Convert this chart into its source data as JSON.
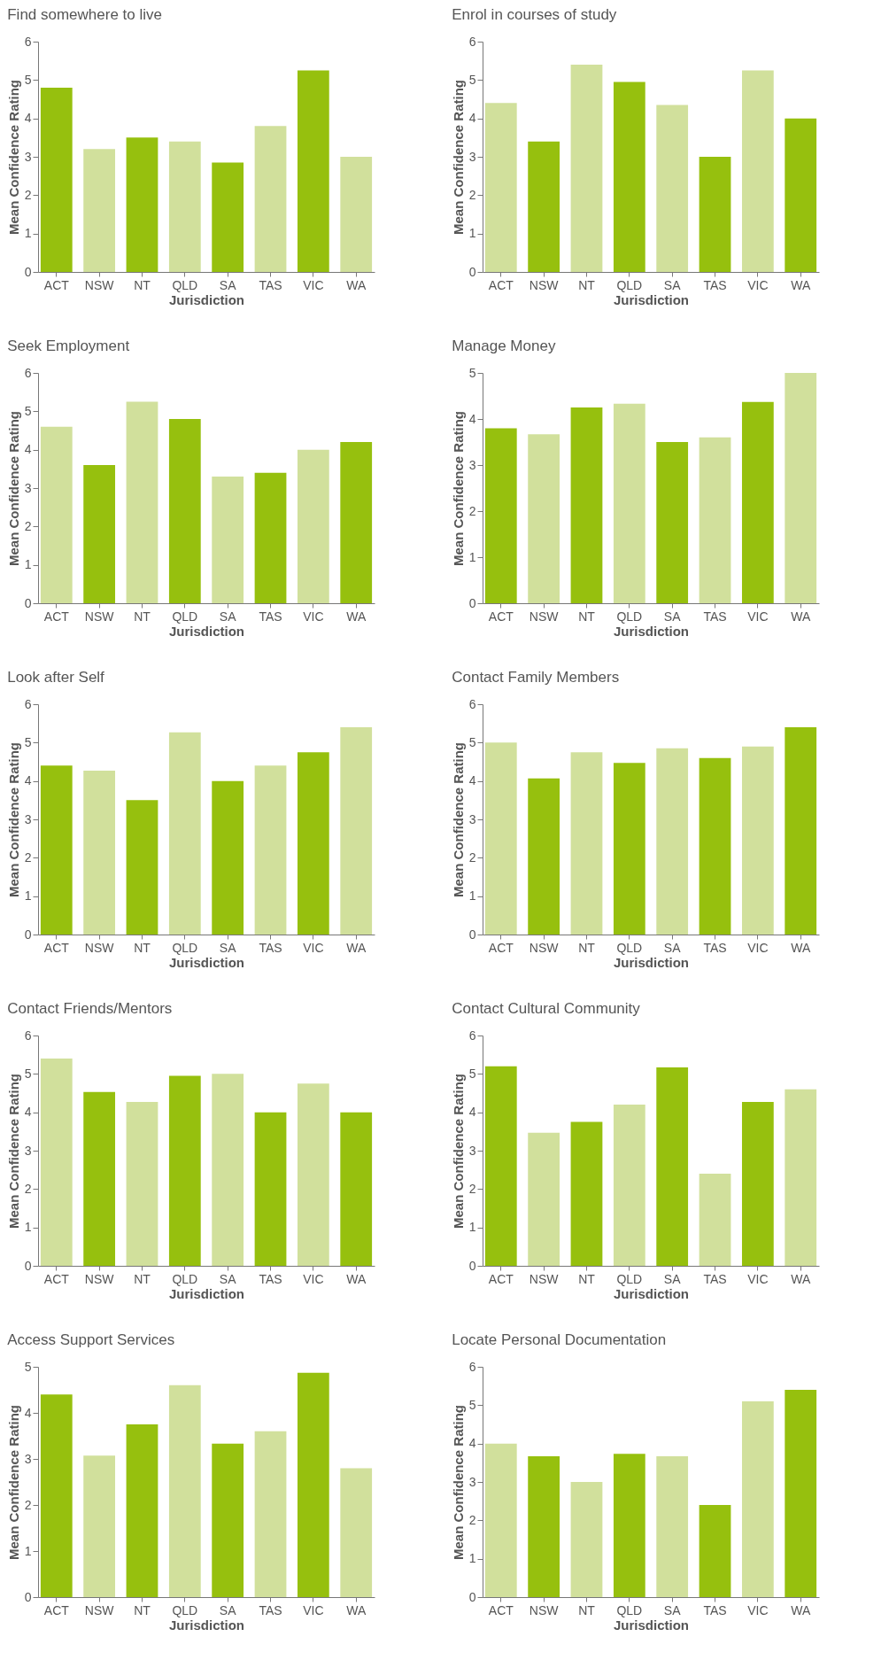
{
  "chart_data": [
    {
      "type": "bar",
      "title": "Find somewhere to live",
      "xlabel": "Jurisdiction",
      "ylabel": "Mean Confidence Rating",
      "categories": [
        "ACT",
        "NSW",
        "NT",
        "QLD",
        "SA",
        "TAS",
        "VIC",
        "WA"
      ],
      "values": [
        4.8,
        3.2,
        3.5,
        3.4,
        2.85,
        3.8,
        5.25,
        3.0
      ],
      "colors": [
        "#96c00e",
        "#d1e09c",
        "#96c00e",
        "#d1e09c",
        "#96c00e",
        "#d1e09c",
        "#96c00e",
        "#d1e09c"
      ],
      "ylim": [
        0,
        6
      ],
      "yticks": [
        0,
        1,
        2,
        3,
        4,
        5,
        6
      ]
    },
    {
      "type": "bar",
      "title": "Enrol in courses of study",
      "xlabel": "Jurisdiction",
      "ylabel": "Mean Confidence Rating",
      "categories": [
        "ACT",
        "NSW",
        "NT",
        "QLD",
        "SA",
        "TAS",
        "VIC",
        "WA"
      ],
      "values": [
        4.4,
        3.4,
        5.4,
        4.95,
        4.35,
        3.0,
        5.25,
        4.0
      ],
      "colors": [
        "#d1e09c",
        "#96c00e",
        "#d1e09c",
        "#96c00e",
        "#d1e09c",
        "#96c00e",
        "#d1e09c",
        "#96c00e"
      ],
      "ylim": [
        0,
        6
      ],
      "yticks": [
        0,
        1,
        2,
        3,
        4,
        5,
        6
      ]
    },
    {
      "type": "bar",
      "title": "Seek Employment",
      "xlabel": "Jurisdiction",
      "ylabel": "Mean Confidence Rating",
      "categories": [
        "ACT",
        "NSW",
        "NT",
        "QLD",
        "SA",
        "TAS",
        "VIC",
        "WA"
      ],
      "values": [
        4.6,
        3.6,
        5.25,
        4.8,
        3.3,
        3.4,
        4.0,
        4.2
      ],
      "colors": [
        "#d1e09c",
        "#96c00e",
        "#d1e09c",
        "#96c00e",
        "#d1e09c",
        "#96c00e",
        "#d1e09c",
        "#96c00e"
      ],
      "ylim": [
        0,
        6
      ],
      "yticks": [
        0,
        1,
        2,
        3,
        4,
        5,
        6
      ]
    },
    {
      "type": "bar",
      "title": "Manage Money",
      "xlabel": "Jurisdiction",
      "ylabel": "Mean Confidence Rating",
      "categories": [
        "ACT",
        "NSW",
        "NT",
        "QLD",
        "SA",
        "TAS",
        "VIC",
        "WA"
      ],
      "values": [
        3.8,
        3.67,
        4.25,
        4.33,
        3.5,
        3.6,
        4.37,
        5.0
      ],
      "colors": [
        "#96c00e",
        "#d1e09c",
        "#96c00e",
        "#d1e09c",
        "#96c00e",
        "#d1e09c",
        "#96c00e",
        "#d1e09c"
      ],
      "ylim": [
        0,
        5
      ],
      "yticks": [
        0,
        1,
        2,
        3,
        4,
        5
      ]
    },
    {
      "type": "bar",
      "title": "Look after Self",
      "xlabel": "Jurisdiction",
      "ylabel": "Mean Confidence Rating",
      "categories": [
        "ACT",
        "NSW",
        "NT",
        "QLD",
        "SA",
        "TAS",
        "VIC",
        "WA"
      ],
      "values": [
        4.4,
        4.27,
        3.5,
        5.27,
        4.0,
        4.4,
        4.75,
        5.4
      ],
      "colors": [
        "#96c00e",
        "#d1e09c",
        "#96c00e",
        "#d1e09c",
        "#96c00e",
        "#d1e09c",
        "#96c00e",
        "#d1e09c"
      ],
      "ylim": [
        0,
        6
      ],
      "yticks": [
        0,
        1,
        2,
        3,
        4,
        5,
        6
      ]
    },
    {
      "type": "bar",
      "title": "Contact Family Members",
      "xlabel": "Jurisdiction",
      "ylabel": "Mean Confidence Rating",
      "categories": [
        "ACT",
        "NSW",
        "NT",
        "QLD",
        "SA",
        "TAS",
        "VIC",
        "WA"
      ],
      "values": [
        5.0,
        4.07,
        4.75,
        4.47,
        4.85,
        4.6,
        4.9,
        5.4
      ],
      "colors": [
        "#d1e09c",
        "#96c00e",
        "#d1e09c",
        "#96c00e",
        "#d1e09c",
        "#96c00e",
        "#d1e09c",
        "#96c00e"
      ],
      "ylim": [
        0,
        6
      ],
      "yticks": [
        0,
        1,
        2,
        3,
        4,
        5,
        6
      ]
    },
    {
      "type": "bar",
      "title": "Contact Friends/Mentors",
      "xlabel": "Jurisdiction",
      "ylabel": "Mean Confidence Rating",
      "categories": [
        "ACT",
        "NSW",
        "NT",
        "QLD",
        "SA",
        "TAS",
        "VIC",
        "WA"
      ],
      "values": [
        5.4,
        4.53,
        4.27,
        4.95,
        5.0,
        4.0,
        4.75,
        4.0
      ],
      "colors": [
        "#d1e09c",
        "#96c00e",
        "#d1e09c",
        "#96c00e",
        "#d1e09c",
        "#96c00e",
        "#d1e09c",
        "#96c00e"
      ],
      "ylim": [
        0,
        6
      ],
      "yticks": [
        0,
        1,
        2,
        3,
        4,
        5,
        6
      ]
    },
    {
      "type": "bar",
      "title": "Contact Cultural Community",
      "xlabel": "Jurisdiction",
      "ylabel": "Mean Confidence Rating",
      "categories": [
        "ACT",
        "NSW",
        "NT",
        "QLD",
        "SA",
        "TAS",
        "VIC",
        "WA"
      ],
      "values": [
        5.2,
        3.47,
        3.75,
        4.2,
        5.17,
        2.4,
        4.27,
        4.6
      ],
      "colors": [
        "#96c00e",
        "#d1e09c",
        "#96c00e",
        "#d1e09c",
        "#96c00e",
        "#d1e09c",
        "#96c00e",
        "#d1e09c"
      ],
      "ylim": [
        0,
        6
      ],
      "yticks": [
        0,
        1,
        2,
        3,
        4,
        5,
        6
      ]
    },
    {
      "type": "bar",
      "title": "Access Support Services",
      "xlabel": "Jurisdiction",
      "ylabel": "Mean Confidence Rating",
      "categories": [
        "ACT",
        "NSW",
        "NT",
        "QLD",
        "SA",
        "TAS",
        "VIC",
        "WA"
      ],
      "values": [
        4.4,
        3.07,
        3.75,
        4.6,
        3.33,
        3.6,
        4.87,
        2.8
      ],
      "colors": [
        "#96c00e",
        "#d1e09c",
        "#96c00e",
        "#d1e09c",
        "#96c00e",
        "#d1e09c",
        "#96c00e",
        "#d1e09c"
      ],
      "ylim": [
        0,
        5
      ],
      "yticks": [
        0,
        1,
        2,
        3,
        4,
        5
      ]
    },
    {
      "type": "bar",
      "title": "Locate Personal Documentation",
      "xlabel": "Jurisdiction",
      "ylabel": "Mean Confidence Rating",
      "categories": [
        "ACT",
        "NSW",
        "NT",
        "QLD",
        "SA",
        "TAS",
        "VIC",
        "WA"
      ],
      "values": [
        4.0,
        3.67,
        3.0,
        3.73,
        3.67,
        2.4,
        5.1,
        5.4
      ],
      "colors": [
        "#d1e09c",
        "#96c00e",
        "#d1e09c",
        "#96c00e",
        "#d1e09c",
        "#96c00e",
        "#d1e09c",
        "#96c00e"
      ],
      "ylim": [
        0,
        6
      ],
      "yticks": [
        0,
        1,
        2,
        3,
        4,
        5,
        6
      ]
    }
  ]
}
